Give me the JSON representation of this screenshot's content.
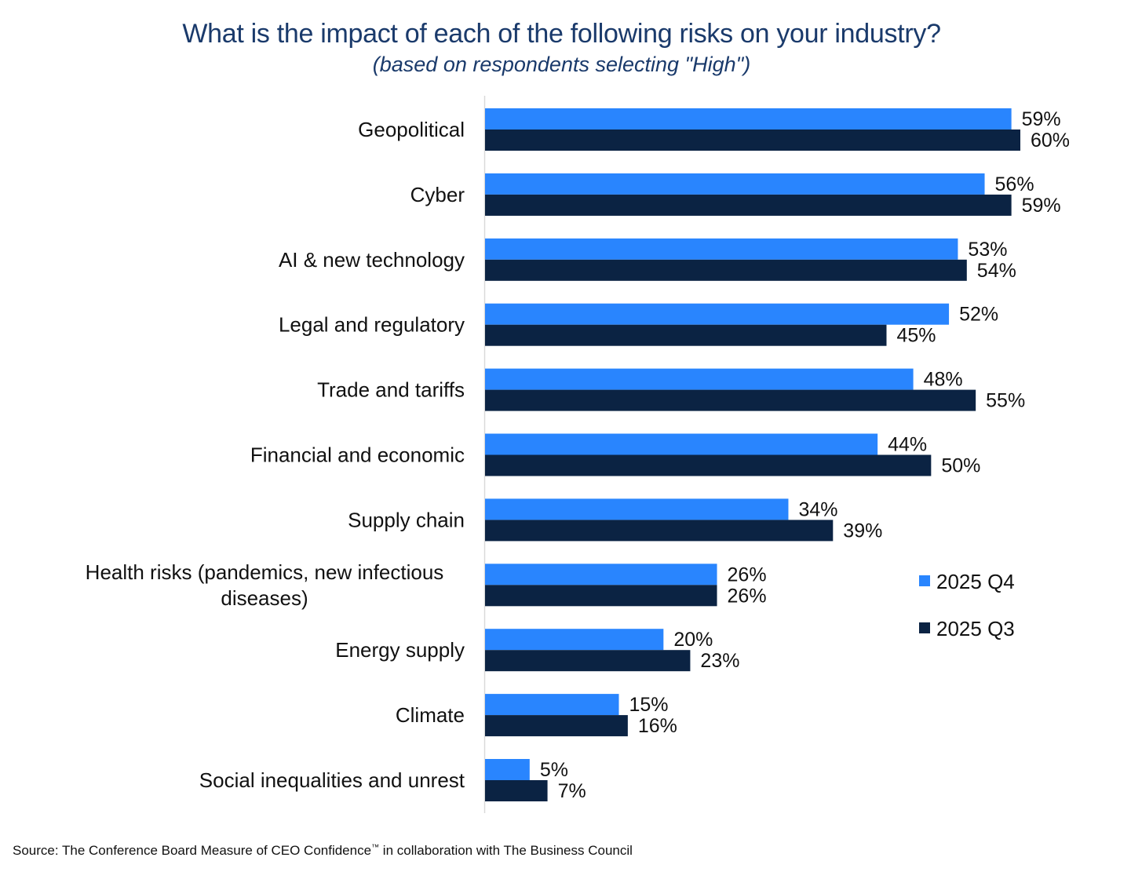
{
  "chart_data": {
    "type": "bar",
    "orientation": "horizontal",
    "title": "What is the impact of each of the following risks on your industry?",
    "subtitle": "(based on respondents selecting \"High\")",
    "categories": [
      "Geopolitical",
      "Cyber",
      "AI & new technology",
      "Legal and regulatory",
      "Trade and tariffs",
      "Financial and economic",
      "Supply chain",
      "Health risks (pandemics, new infectious diseases)",
      "Energy supply",
      "Climate",
      "Social inequalities and unrest"
    ],
    "category_lines": [
      [
        "Geopolitical"
      ],
      [
        "Cyber"
      ],
      [
        "AI & new technology"
      ],
      [
        "Legal and regulatory"
      ],
      [
        "Trade and tariffs"
      ],
      [
        "Financial and economic"
      ],
      [
        "Supply chain"
      ],
      [
        "Health risks (pandemics, new infectious",
        "diseases)"
      ],
      [
        "Energy supply"
      ],
      [
        "Climate"
      ],
      [
        "Social inequalities and unrest"
      ]
    ],
    "series": [
      {
        "name": "2025 Q4",
        "color": "#2985fe",
        "values": [
          59,
          56,
          53,
          52,
          48,
          44,
          34,
          26,
          20,
          15,
          5
        ]
      },
      {
        "name": "2025 Q3",
        "color": "#0b2343",
        "values": [
          60,
          59,
          54,
          45,
          55,
          50,
          39,
          26,
          23,
          16,
          7
        ]
      }
    ],
    "value_suffix": "%",
    "xlim": [
      0,
      60
    ],
    "xlabel": "",
    "ylabel": "",
    "grid": false,
    "legend_position": "right"
  },
  "source": {
    "prefix": "Source: The Conference Board Measure of CEO Confidence",
    "trademark": "™",
    "suffix": " in collaboration with The Business Council"
  }
}
